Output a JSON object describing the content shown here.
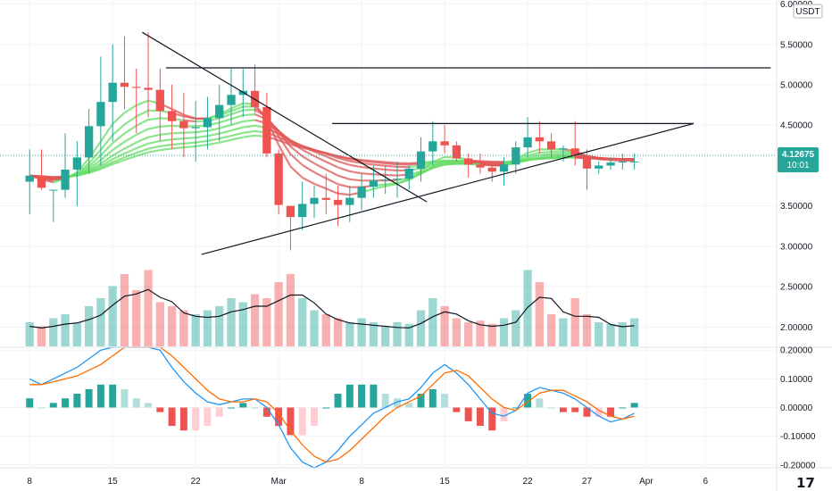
{
  "chart_data": {
    "type": "candlestick",
    "currency_label": "USDT",
    "price_axis": {
      "ticks": [
        "6.00000",
        "5.50000",
        "5.00000",
        "4.50000",
        "3.50000",
        "3.00000",
        "2.50000",
        "2.00000"
      ],
      "range": [
        1.75,
        6.05
      ]
    },
    "current_price": {
      "value": "4.12675",
      "countdown": "10:01"
    },
    "indicator_axis": {
      "ticks": [
        "0.20000",
        "0.10000",
        "0.00000",
        "-0.10000",
        "-0.20000"
      ],
      "range": [
        -0.21,
        0.21
      ]
    },
    "x_axis": {
      "labels": [
        "8",
        "15",
        "22",
        "Mar",
        "8",
        "15",
        "22",
        "27",
        "Apr",
        "6"
      ],
      "days": [
        0,
        7,
        14,
        21,
        28,
        35,
        42,
        47,
        52,
        57
      ],
      "range": [
        -2.5,
        63
      ]
    },
    "candles": [
      [
        4.2,
        3.4
      ],
      [
        4.2,
        3.7
      ],
      [
        3.7,
        3.3
      ],
      [
        4.4,
        3.6
      ],
      [
        4.3,
        3.5
      ],
      [
        4.7,
        3.9
      ],
      [
        5.35,
        4.0
      ],
      [
        5.5,
        4.3
      ],
      [
        5.6,
        4.7
      ],
      [
        5.2,
        4.4
      ],
      [
        5.65,
        4.6
      ],
      [
        5.2,
        4.3
      ],
      [
        5.0,
        4.2
      ],
      [
        4.9,
        4.1
      ],
      [
        4.8,
        4.05
      ],
      [
        4.85,
        4.2
      ],
      [
        5.0,
        4.3
      ],
      [
        5.2,
        4.5
      ],
      [
        5.2,
        4.6
      ],
      [
        5.25,
        4.65
      ],
      [
        4.9,
        4.1
      ],
      [
        4.2,
        3.4
      ],
      [
        3.5,
        2.95
      ],
      [
        3.8,
        3.2
      ],
      [
        3.75,
        3.35
      ],
      [
        3.9,
        3.4
      ],
      [
        3.75,
        3.25
      ],
      [
        3.75,
        3.3
      ],
      [
        3.9,
        3.45
      ],
      [
        4.0,
        3.6
      ],
      [
        4.0,
        3.65
      ],
      [
        4.05,
        3.6
      ],
      [
        4.0,
        3.7
      ],
      [
        4.35,
        3.8
      ],
      [
        4.55,
        4.0
      ],
      [
        4.5,
        4.15
      ],
      [
        4.3,
        4.05
      ],
      [
        4.15,
        3.85
      ],
      [
        4.15,
        3.9
      ],
      [
        4.05,
        3.8
      ],
      [
        4.1,
        3.75
      ],
      [
        4.3,
        3.9
      ],
      [
        4.6,
        4.1
      ],
      [
        4.55,
        4.15
      ],
      [
        4.4,
        4.1
      ],
      [
        4.25,
        4.05
      ],
      [
        4.55,
        4.0
      ],
      [
        4.2,
        3.7
      ],
      [
        4.05,
        3.9
      ],
      [
        4.1,
        3.95
      ],
      [
        4.15,
        3.95
      ],
      [
        4.15,
        3.95
      ]
    ],
    "volume": [
      0.3,
      0.25,
      0.35,
      0.4,
      0.3,
      0.5,
      0.6,
      0.75,
      0.9,
      0.7,
      0.95,
      0.55,
      0.5,
      0.45,
      0.4,
      0.45,
      0.5,
      0.6,
      0.55,
      0.65,
      0.6,
      0.8,
      0.9,
      0.6,
      0.45,
      0.4,
      0.35,
      0.3,
      0.35,
      0.3,
      0.25,
      0.3,
      0.28,
      0.45,
      0.6,
      0.5,
      0.35,
      0.3,
      0.32,
      0.28,
      0.35,
      0.45,
      0.95,
      0.8,
      0.4,
      0.35,
      0.6,
      0.4,
      0.3,
      0.28,
      0.3,
      0.35
    ],
    "macd": [
      0.1,
      0.08,
      0.1,
      0.12,
      0.14,
      0.17,
      0.2,
      0.23,
      0.25,
      0.24,
      0.23,
      0.2,
      0.14,
      0.09,
      0.05,
      0.02,
      0.01,
      0.02,
      0.03,
      0.03,
      0.0,
      -0.06,
      -0.14,
      -0.19,
      -0.21,
      -0.19,
      -0.15,
      -0.1,
      -0.06,
      -0.02,
      0.0,
      0.02,
      0.03,
      0.07,
      0.12,
      0.15,
      0.12,
      0.08,
      0.03,
      -0.02,
      -0.03,
      -0.01,
      0.05,
      0.07,
      0.06,
      0.05,
      0.03,
      0.0,
      -0.03,
      -0.05,
      -0.04,
      -0.02
    ],
    "signal": [
      0.08,
      0.08,
      0.09,
      0.1,
      0.11,
      0.13,
      0.15,
      0.18,
      0.21,
      0.22,
      0.22,
      0.21,
      0.18,
      0.14,
      0.1,
      0.06,
      0.03,
      0.02,
      0.02,
      0.03,
      0.02,
      -0.02,
      -0.08,
      -0.13,
      -0.17,
      -0.19,
      -0.18,
      -0.15,
      -0.11,
      -0.07,
      -0.03,
      0.0,
      0.02,
      0.04,
      0.08,
      0.12,
      0.13,
      0.11,
      0.07,
      0.03,
      0.0,
      -0.01,
      0.02,
      0.05,
      0.06,
      0.06,
      0.04,
      0.02,
      -0.01,
      -0.03,
      -0.04,
      -0.03
    ],
    "trendlines": [
      {
        "from": [
          9.5,
          5.65
        ],
        "to": [
          33.5,
          3.55
        ]
      },
      {
        "from": [
          14.5,
          2.9
        ],
        "to": [
          56.0,
          4.52
        ]
      },
      {
        "from": [
          11.5,
          5.21
        ],
        "to": [
          62.5,
          5.21
        ]
      },
      {
        "from": [
          25.5,
          4.52
        ],
        "to": [
          56.0,
          4.52
        ]
      }
    ],
    "colors": {
      "up": "#26a69a",
      "down": "#ef5350",
      "ribbon_up": "#66dd66",
      "ribbon_down": "#e05555",
      "macd": "#2196f3",
      "signal": "#ff6d00",
      "price_tag": "#26a69a"
    }
  }
}
